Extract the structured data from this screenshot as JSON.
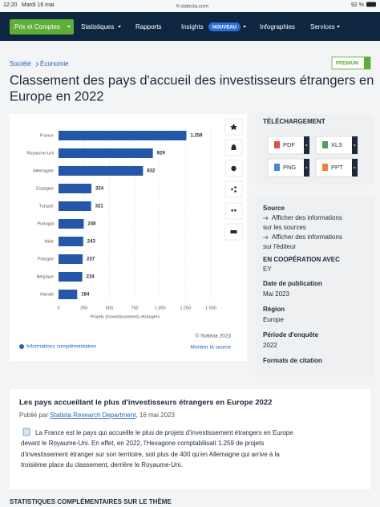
{
  "status_bar": {
    "time": "12:20",
    "date": "Mardi 16 mai",
    "url": "fr.statista.com",
    "battery": "92 %"
  },
  "nav": {
    "account": "Prix et Comptes",
    "items": [
      "Statistiques",
      "Rapports",
      "Insights",
      "Infographies",
      "Services"
    ],
    "badge": "NOUVEAU"
  },
  "breadcrumb": [
    "Société",
    "Économie"
  ],
  "premium": "PREMIUM",
  "title_lines": [
    "Classement des pays d'accueil des investisseurs étrangers en",
    "Europe en 2022"
  ],
  "chart_data": {
    "type": "bar",
    "orientation": "horizontal",
    "categories": [
      "France",
      "Royaume-Uni",
      "Allemagne",
      "Espagne",
      "Turquie",
      "Portugal",
      "Italie",
      "Pologne",
      "Belgique",
      "Irlande"
    ],
    "values": [
      1259,
      929,
      832,
      324,
      321,
      248,
      243,
      237,
      234,
      184
    ],
    "value_labels": [
      "1.259",
      "929",
      "832",
      "324",
      "321",
      "248",
      "243",
      "237",
      "234",
      "184"
    ],
    "color": "#2457a8",
    "xlim": [
      0,
      1500
    ],
    "xticks": [
      0,
      250,
      500,
      750,
      {
        "value": 1000,
        "label": "1.000"
      },
      {
        "value": 1250,
        "label": "1.250"
      },
      {
        "value": 1500,
        "label": "1.500"
      }
    ],
    "xlabel": "Projets d'investissements étrangers",
    "grid": true
  },
  "chart_footer": {
    "credit": "© Statista 2023",
    "more_info": "Informations complémentaires",
    "show_source": "Montrer la source"
  },
  "download": {
    "title": "TÉLÉCHARGEMENT",
    "formats": [
      "PDF",
      "XLS",
      "PNG",
      "PPT"
    ]
  },
  "source_panel": {
    "source_title": "Source",
    "source_link": [
      "Afficher des informations",
      "sur les sources"
    ],
    "publisher_link": [
      "Afficher des informations",
      "sur l'éditeur"
    ],
    "cooperation_title": "EN COOPÉRATION AVEC",
    "cooperation": "EY",
    "date_title": "Date de publication",
    "date": "Mai 2023",
    "region_title": "Région",
    "region": "Europe",
    "period_title": "Période d'enquête",
    "period": "2022",
    "citation": "Formats de citation"
  },
  "article": {
    "heading": "Les pays accueillant le plus d'investisseurs étrangers en Europe 2022",
    "byline_prefix": "Publié par",
    "byline_author": "Statista Research Department",
    "byline_date": ", 16 mai 2023",
    "lines": [
      "La France est le pays qui accueille le plus de projets d'investissement étrangers en Europe",
      "devant le Royaume-Uni. En effet, en 2022, l'Hexagone comptabilisait 1.259 de projets",
      "d'investissement étranger sur son territoire, soit plus de 400 qu'en Allemagne qui arrive à la",
      "troisième place du classement, derrière le Royaume-Uni."
    ]
  },
  "related": "STATISTIQUES COMPLÉMENTAIRES SUR LE THÈME"
}
